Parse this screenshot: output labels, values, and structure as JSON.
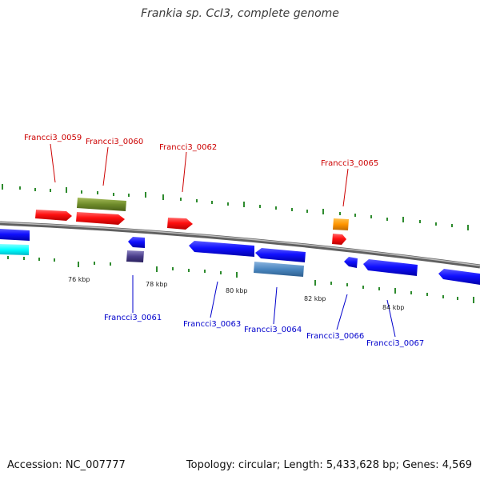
{
  "title": "Frankia sp. CcI3, complete genome",
  "footer": {
    "accession": "Accession: NC_007777",
    "summary": "Topology: circular; Length: 5,433,628 bp; Genes: 4,569"
  },
  "colors": {
    "forward_label": "#cc0000",
    "reverse_label": "#0000cc",
    "backbone": "#808080",
    "tick": "#2e8b2e"
  },
  "scale_labels": [
    "76 kbp",
    "78 kbp",
    "80 kbp",
    "82 kbp",
    "84 kbp"
  ],
  "genes_forward": [
    "Francci3_0059",
    "Francci3_0060",
    "Francci3_0062",
    "Francci3_0065"
  ],
  "genes_reverse": [
    "Francci3_0061",
    "Francci3_0063",
    "Francci3_0064",
    "Francci3_0066",
    "Francci3_0067"
  ]
}
